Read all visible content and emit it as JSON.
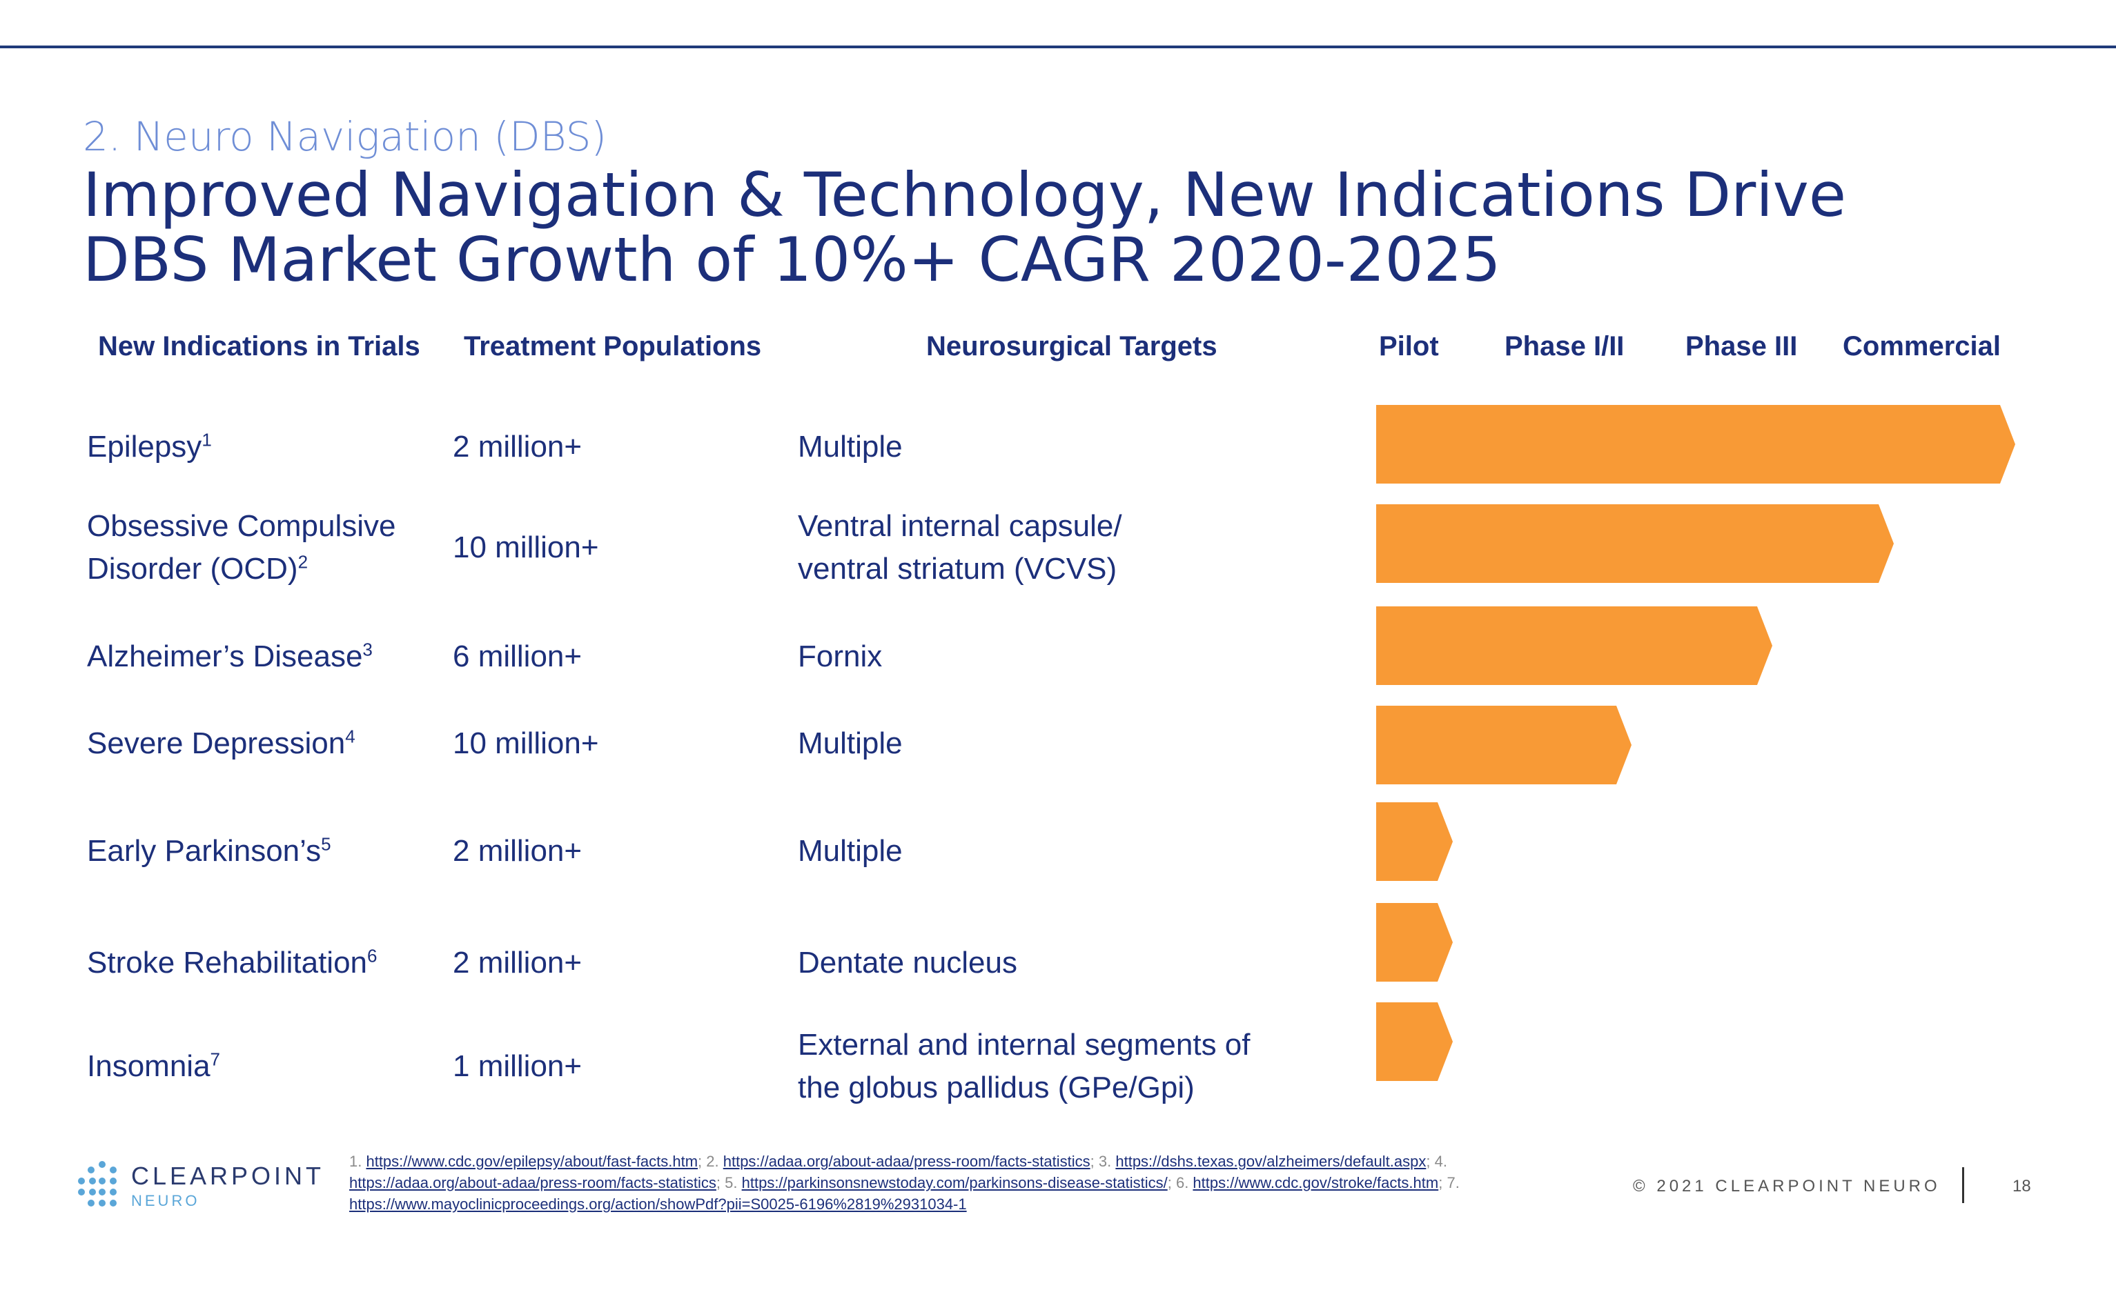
{
  "header": {
    "subtitle": "2. Neuro Navigation (DBS)",
    "title": "Improved Navigation & Technology, New Indications Drive\nDBS Market Growth of 10%+ CAGR 2020-2025"
  },
  "columns": {
    "indications": "New Indications in Trials",
    "populations": "Treatment Populations",
    "targets": "Neurosurgical Targets",
    "phases": [
      "Pilot",
      "Phase I/II",
      "Phase III",
      "Commercial"
    ]
  },
  "rows": [
    {
      "indication": "Epilepsy",
      "sup": "1",
      "population": "2 million+",
      "target": "Multiple",
      "stage_progress": 1.0
    },
    {
      "indication": "Obsessive Compulsive\nDisorder (OCD)",
      "sup": "2",
      "population": "10 million+",
      "target": "Ventral internal capsule/\nventral striatum (VCVS)",
      "stage_progress": 0.81
    },
    {
      "indication": "Alzheimer’s Disease",
      "sup": "3",
      "population": "6 million+",
      "target": "Fornix",
      "stage_progress": 0.62
    },
    {
      "indication": "Severe Depression",
      "sup": "4",
      "population": "10 million+",
      "target": "Multiple",
      "stage_progress": 0.4
    },
    {
      "indication": "Early Parkinson’s",
      "sup": "5",
      "population": "2 million+",
      "target": "Multiple",
      "stage_progress": 0.12
    },
    {
      "indication": "Stroke Rehabilitation",
      "sup": "6",
      "population": "2 million+",
      "target": "Dentate nucleus",
      "stage_progress": 0.12
    },
    {
      "indication": "Insomnia",
      "sup": "7",
      "population": "1 million+",
      "target": "External and internal segments of\nthe globus pallidus (GPe/Gpi)",
      "stage_progress": 0.12
    }
  ],
  "colors": {
    "bar": "#f89a36",
    "text": "#1c2f7a",
    "subtitle": "#6f8ed6"
  },
  "footnotes": [
    {
      "num": "1. ",
      "url": "https://www.cdc.gov/epilepsy/about/fast-facts.htm",
      "sep": "; "
    },
    {
      "num": "2. ",
      "url": "https://adaa.org/about-adaa/press-room/facts-statistics",
      "sep": "; "
    },
    {
      "num": "3. ",
      "url": "https://dshs.texas.gov/alzheimers/default.aspx",
      "sep": "; "
    },
    {
      "num": "4. ",
      "url": "https://adaa.org/about-adaa/press-room/facts-statistics",
      "sep": "; "
    },
    {
      "num": "5. ",
      "url": "https://parkinsonsnewstoday.com/parkinsons-disease-statistics/",
      "sep": "; "
    },
    {
      "num": "6. ",
      "url": "https://www.cdc.gov/stroke/facts.htm",
      "sep": "; "
    },
    {
      "num": "7. ",
      "url": "https://www.mayoclinicproceedings.org/action/showPdf?pii=S0025-6196%2819%2931034-1",
      "sep": ""
    }
  ],
  "footer": {
    "logo_name": "CLEARPOINT",
    "logo_sub": "NEURO",
    "copyright": "© 2021 CLEARPOINT NEURO",
    "page": "18"
  }
}
